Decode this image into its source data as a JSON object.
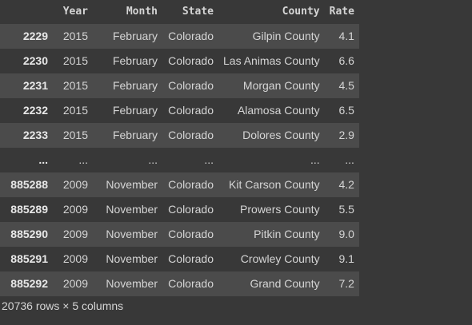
{
  "table": {
    "columns": [
      "",
      "Year",
      "Month",
      "State",
      "County",
      "Rate"
    ],
    "rows": [
      {
        "index": "2229",
        "year": "2015",
        "month": "February",
        "state": "Colorado",
        "county": "Gilpin County",
        "rate": "4.1"
      },
      {
        "index": "2230",
        "year": "2015",
        "month": "February",
        "state": "Colorado",
        "county": "Las Animas County",
        "rate": "6.6"
      },
      {
        "index": "2231",
        "year": "2015",
        "month": "February",
        "state": "Colorado",
        "county": "Morgan County",
        "rate": "4.5"
      },
      {
        "index": "2232",
        "year": "2015",
        "month": "February",
        "state": "Colorado",
        "county": "Alamosa County",
        "rate": "6.5"
      },
      {
        "index": "2233",
        "year": "2015",
        "month": "February",
        "state": "Colorado",
        "county": "Dolores County",
        "rate": "2.9"
      },
      {
        "index": "...",
        "year": "...",
        "month": "...",
        "state": "...",
        "county": "...",
        "rate": "..."
      },
      {
        "index": "885288",
        "year": "2009",
        "month": "November",
        "state": "Colorado",
        "county": "Kit Carson County",
        "rate": "4.2"
      },
      {
        "index": "885289",
        "year": "2009",
        "month": "November",
        "state": "Colorado",
        "county": "Prowers County",
        "rate": "5.5"
      },
      {
        "index": "885290",
        "year": "2009",
        "month": "November",
        "state": "Colorado",
        "county": "Pitkin County",
        "rate": "9.0"
      },
      {
        "index": "885291",
        "year": "2009",
        "month": "November",
        "state": "Colorado",
        "county": "Crowley County",
        "rate": "9.1"
      },
      {
        "index": "885292",
        "year": "2009",
        "month": "November",
        "state": "Colorado",
        "county": "Grand County",
        "rate": "7.2"
      }
    ]
  },
  "footer": {
    "summary": "20736 rows × 5 columns"
  }
}
